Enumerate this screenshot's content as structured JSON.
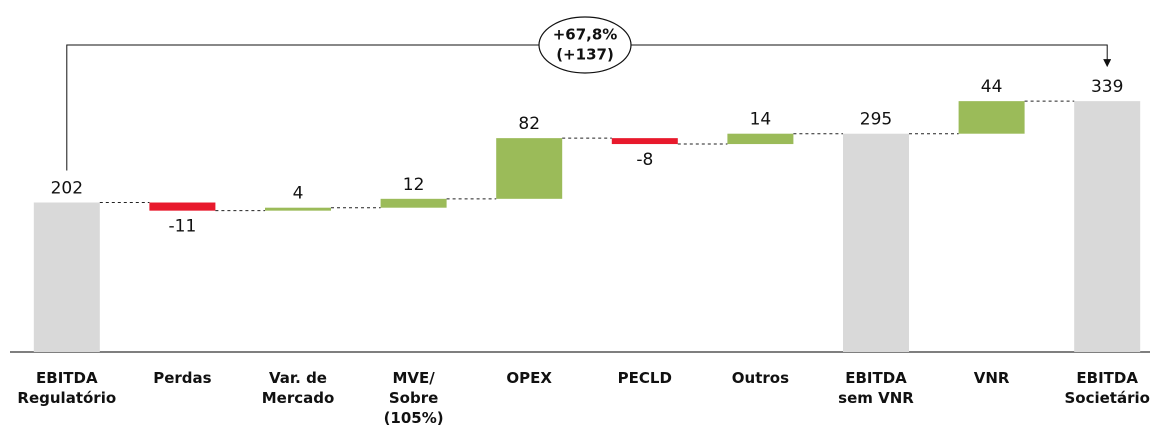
{
  "chart_data": {
    "type": "waterfall",
    "categories": [
      [
        "EBITDA",
        "Regulatório"
      ],
      [
        "Perdas"
      ],
      [
        "Var. de",
        "Mercado"
      ],
      [
        "MVE/",
        "Sobre",
        "(105%)"
      ],
      [
        "OPEX"
      ],
      [
        "PECLD"
      ],
      [
        "Outros"
      ],
      [
        "EBITDA",
        "sem VNR"
      ],
      [
        "VNR"
      ],
      [
        "EBITDA",
        "Societário"
      ]
    ],
    "values": [
      202,
      -11,
      4,
      12,
      82,
      -8,
      14,
      295,
      44,
      339
    ],
    "measures": [
      "total",
      "relative",
      "relative",
      "relative",
      "relative",
      "relative",
      "relative",
      "total",
      "relative",
      "total"
    ],
    "colors": {
      "total": "#d9d9d9",
      "increase": "#9bbb59",
      "decrease": "#e8192c"
    },
    "ylim": [
      0,
      450
    ],
    "annotation": [
      "+67,8%",
      "(+137)"
    ]
  }
}
